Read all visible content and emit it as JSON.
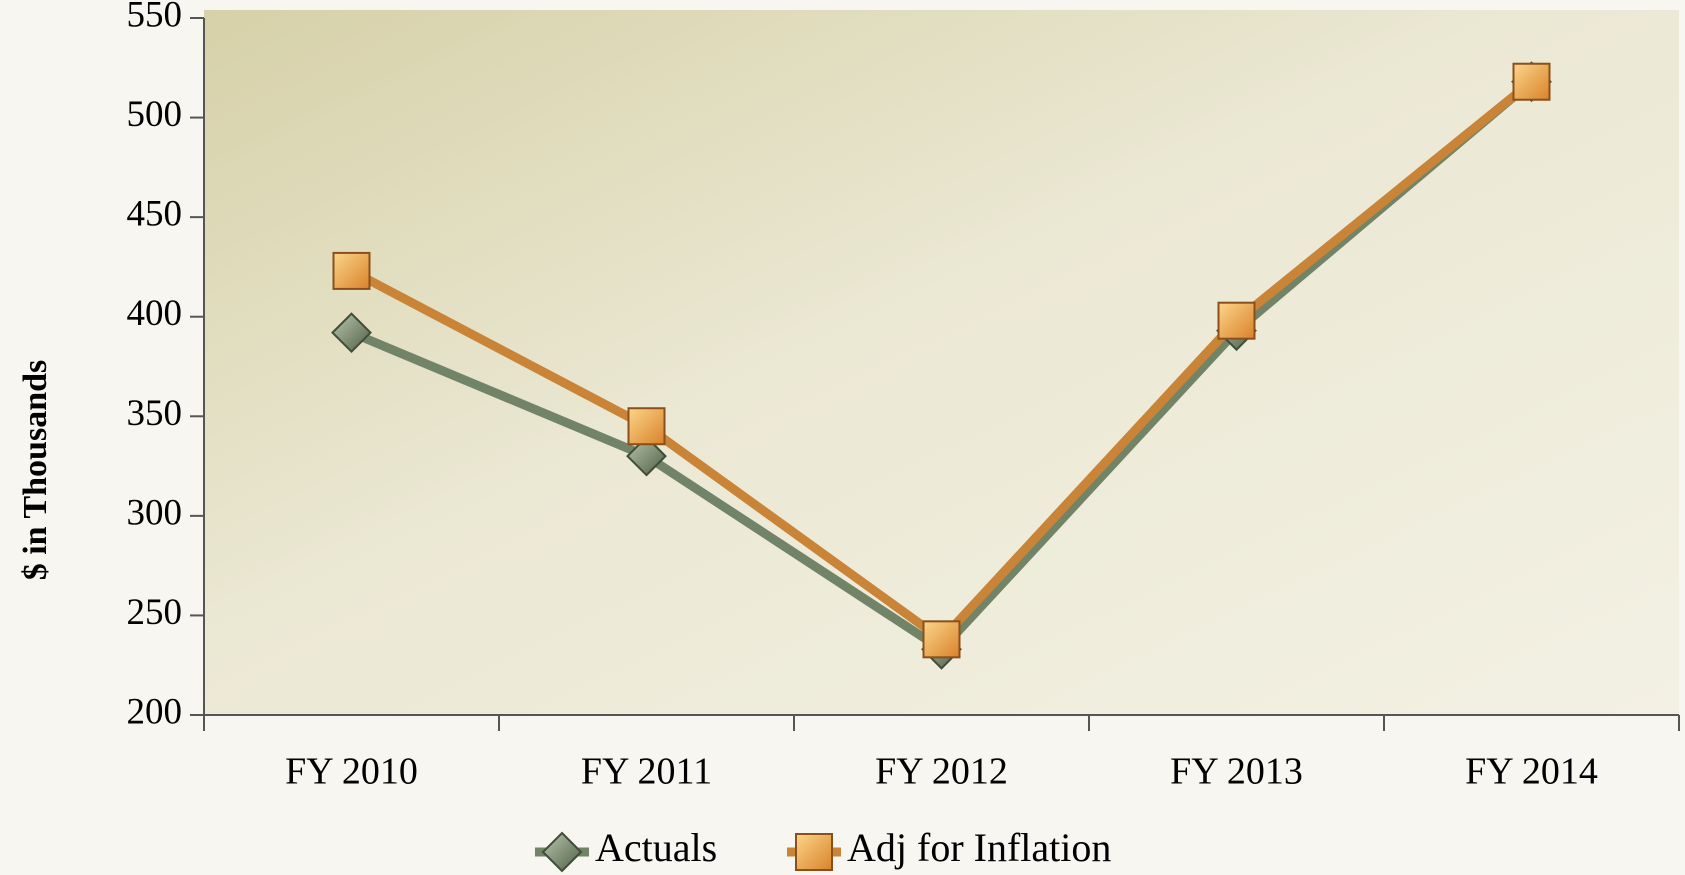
{
  "chart_data": {
    "type": "line",
    "y_label": "$ in Thousands",
    "categories": [
      "FY 2010",
      "FY 2011",
      "FY 2012",
      "FY 2013",
      "FY 2014"
    ],
    "series": [
      {
        "name": "Actuals",
        "color": "#728467",
        "marker": "diamond",
        "values": [
          392,
          330,
          233,
          393,
          518
        ]
      },
      {
        "name": "Adj for Inflation",
        "color": "#c98438",
        "marker": "square",
        "values": [
          423,
          345,
          238,
          398,
          518
        ]
      }
    ],
    "ylim": [
      200,
      550
    ],
    "yticks": [
      200,
      250,
      300,
      350,
      400,
      450,
      500,
      550
    ],
    "legend": "bottom"
  }
}
